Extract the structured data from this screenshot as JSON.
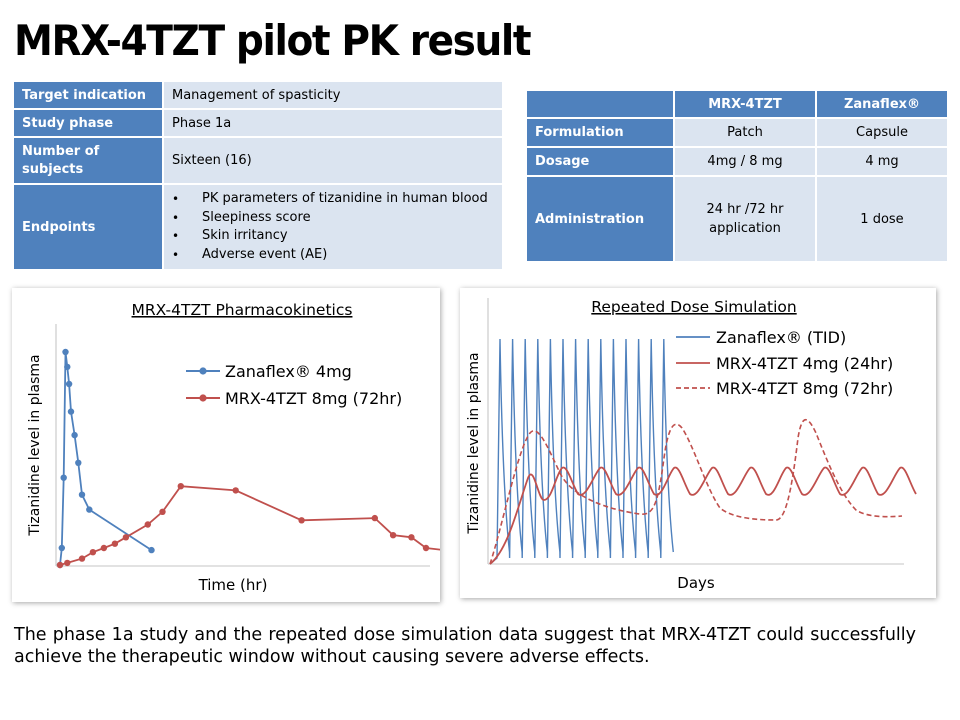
{
  "title": "MRX-4TZT pilot PK result",
  "info_table": {
    "rows": [
      {
        "label": "Target indication",
        "value": "Management of spasticity"
      },
      {
        "label": "Study phase",
        "value": "Phase 1a"
      },
      {
        "label": "Number of subjects",
        "value": "Sixteen (16)"
      },
      {
        "label": "Endpoints",
        "items": [
          "PK parameters of tizanidine in human blood",
          "Sleepiness score",
          "Skin irritancy",
          "Adverse event (AE)"
        ]
      }
    ]
  },
  "compare_table": {
    "headers": [
      "",
      "MRX-4TZT",
      "Zanaflex®"
    ],
    "rows": [
      {
        "label": "Formulation",
        "a": "Patch",
        "b": "Capsule"
      },
      {
        "label": "Dosage",
        "a": "4mg / 8 mg",
        "b": "4 mg"
      },
      {
        "label": "Administration",
        "a": "24 hr /72 hr application",
        "b": "1 dose"
      }
    ]
  },
  "caption": "The phase 1a study and the repeated dose simulation data suggest that MRX-4TZT could successfully achieve the therapeutic window without causing severe adverse effects.",
  "colors": {
    "header": "#4f81bd",
    "cell": "#dbe4f0",
    "zanaflex": "#4f81bd",
    "mrx": "#c0504d"
  },
  "chart_data": [
    {
      "type": "line",
      "title": "MRX-4TZT Pharmacokinetics",
      "xlabel": "Time (hr)",
      "ylabel": "Tizanidine level in plasma",
      "grid": false,
      "legend": "top-right",
      "xlim": [
        0,
        100
      ],
      "ylim": [
        0,
        100
      ],
      "series": [
        {
          "name": "Zanaflex® 4mg",
          "color": "#4f81bd",
          "marker": "circle",
          "x": [
            0,
            0.5,
            1,
            1.5,
            2,
            2.5,
            3,
            4,
            5,
            6,
            8,
            25
          ],
          "y": [
            0,
            8,
            41,
            100,
            93,
            85,
            72,
            61,
            48,
            33,
            26,
            7
          ]
        },
        {
          "name": "MRX-4TZT 8mg (72hr)",
          "color": "#c0504d",
          "marker": "circle",
          "x": [
            0,
            2,
            6,
            9,
            12,
            15,
            18,
            24,
            28,
            33,
            48,
            66,
            86,
            91,
            96,
            100,
            110
          ],
          "y": [
            0,
            1,
            3,
            6,
            8,
            10,
            13,
            19,
            25,
            37,
            35,
            21,
            22,
            14,
            13,
            8,
            6
          ]
        }
      ]
    },
    {
      "type": "line",
      "title": "Repeated Dose Simulation",
      "xlabel": "Days",
      "ylabel": "Tizanidine level in plasma",
      "grid": false,
      "legend": "top-right",
      "series": [
        {
          "name": "Zanaflex® (TID)",
          "color": "#4f81bd",
          "style": "solid"
        },
        {
          "name": "MRX-4TZT 4mg (24hr)",
          "color": "#c0504d",
          "style": "solid"
        },
        {
          "name": "MRX-4TZT 8mg (72hr)",
          "color": "#c0504d",
          "style": "dashed"
        }
      ]
    }
  ]
}
